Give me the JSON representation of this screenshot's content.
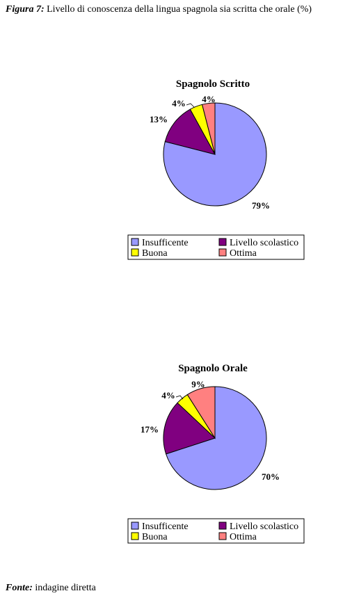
{
  "figure": {
    "label": "Figura 7:",
    "caption": "Livello di conoscenza della lingua spagnola sia scritta che orale (%)"
  },
  "source": {
    "label": "Fonte:",
    "text": "indagine diretta"
  },
  "chart_data": [
    {
      "type": "pie",
      "title": "Spagnolo Scritto",
      "categories": [
        "Insufficente",
        "Livello scolastico",
        "Buona",
        "Ottima"
      ],
      "values": [
        79,
        13,
        4,
        4
      ],
      "labels": [
        "79%",
        "13%",
        "4%",
        "4%"
      ],
      "colors": [
        "#9999ff",
        "#800080",
        "#ffff00",
        "#ff8080"
      ],
      "legend": {
        "placement": "bottom",
        "entries": [
          "Insufficente",
          "Livello scolastico",
          "Buona",
          "Ottima"
        ]
      }
    },
    {
      "type": "pie",
      "title": "Spagnolo Orale",
      "categories": [
        "Insufficente",
        "Livello scolastico",
        "Buona",
        "Ottima"
      ],
      "values": [
        70,
        17,
        4,
        9
      ],
      "labels": [
        "70%",
        "17%",
        "4%",
        "9%"
      ],
      "colors": [
        "#9999ff",
        "#800080",
        "#ffff00",
        "#ff8080"
      ],
      "legend": {
        "placement": "bottom",
        "entries": [
          "Insufficente",
          "Livello scolastico",
          "Buona",
          "Ottima"
        ]
      }
    }
  ]
}
